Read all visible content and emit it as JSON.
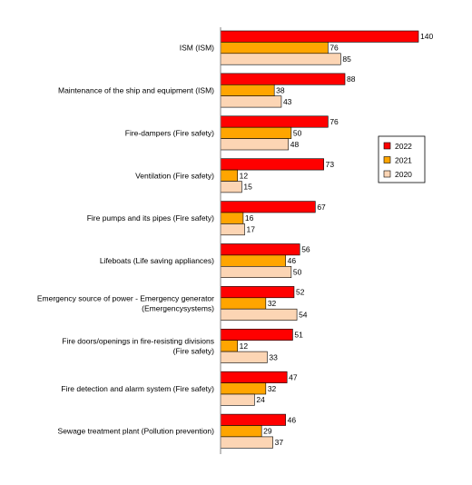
{
  "chart_data": {
    "type": "bar",
    "orientation": "horizontal",
    "categories": [
      "ISM (ISM)",
      "Maintenance of the ship and equipment (ISM)",
      "Fire-dampers (Fire safety)",
      "Ventilation (Fire safety)",
      "Fire pumps and its pipes (Fire safety)",
      "Lifeboats (Life saving appliances)",
      "Emergency source of power - Emergency generator (Emergencysystems)",
      "Fire doors/openings in fire-resisting divisions (Fire safety)",
      "Fire detection and alarm system (Fire safety)",
      "Sewage treatment plant (Pollution prevention)"
    ],
    "series": [
      {
        "name": "2022",
        "color": "#ff0000",
        "values": [
          140,
          88,
          76,
          73,
          67,
          56,
          52,
          51,
          47,
          46
        ]
      },
      {
        "name": "2021",
        "color": "#ffa500",
        "values": [
          76,
          38,
          50,
          12,
          16,
          46,
          32,
          12,
          32,
          29
        ]
      },
      {
        "name": "2020",
        "color": "#fcd5b4",
        "values": [
          85,
          43,
          48,
          15,
          17,
          50,
          54,
          33,
          24,
          37
        ]
      }
    ],
    "xlim": [
      0,
      140
    ],
    "grid": false,
    "legend_position": "right",
    "legend_order": [
      "2022",
      "2021",
      "2020"
    ]
  }
}
